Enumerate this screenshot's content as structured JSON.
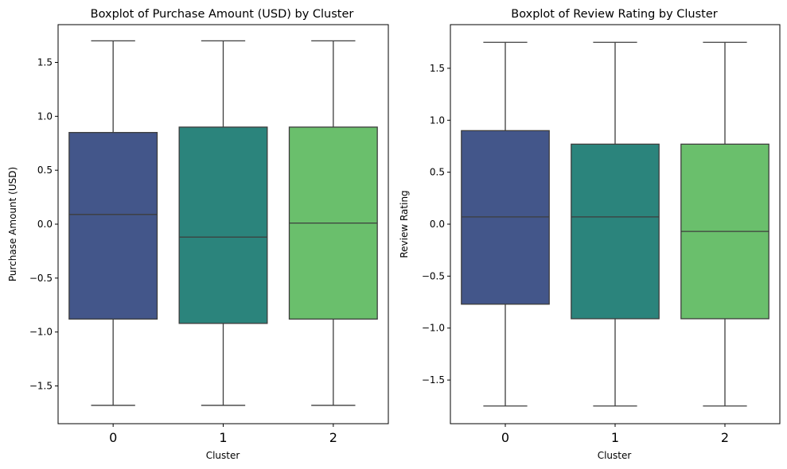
{
  "colors": {
    "cluster_0": "#43568a",
    "cluster_1": "#2b847c",
    "cluster_2": "#6abf6c",
    "line": "#3d3d3d"
  },
  "chart_data": [
    {
      "type": "box",
      "title": "Boxplot of Purchase Amount (USD) by Cluster",
      "xlabel": "Cluster",
      "ylabel": "Purchase Amount (USD)",
      "categories": [
        "0",
        "1",
        "2"
      ],
      "ylim": [
        -1.85,
        1.85
      ],
      "yticks": [
        -1.5,
        -1.0,
        -0.5,
        0.0,
        0.5,
        1.0,
        1.5
      ],
      "ytick_labels": [
        "−1.5",
        "−1.0",
        "−0.5",
        "0.0",
        "0.5",
        "1.0",
        "1.5"
      ],
      "boxes": [
        {
          "category": "0",
          "min": -1.68,
          "q1": -0.88,
          "median": 0.09,
          "q3": 0.85,
          "max": 1.7
        },
        {
          "category": "1",
          "min": -1.68,
          "q1": -0.92,
          "median": -0.12,
          "q3": 0.9,
          "max": 1.7
        },
        {
          "category": "2",
          "min": -1.68,
          "q1": -0.88,
          "median": 0.01,
          "q3": 0.9,
          "max": 1.7
        }
      ],
      "grid": false
    },
    {
      "type": "box",
      "title": "Boxplot of Review Rating by Cluster",
      "xlabel": "Cluster",
      "ylabel": "Review Rating",
      "categories": [
        "0",
        "1",
        "2"
      ],
      "ylim": [
        -1.92,
        1.92
      ],
      "yticks": [
        -1.5,
        -1.0,
        -0.5,
        0.0,
        0.5,
        1.0,
        1.5
      ],
      "ytick_labels": [
        "−1.5",
        "−1.0",
        "−0.5",
        "0.0",
        "0.5",
        "1.0",
        "1.5"
      ],
      "boxes": [
        {
          "category": "0",
          "min": -1.75,
          "q1": -0.77,
          "median": 0.07,
          "q3": 0.9,
          "max": 1.75
        },
        {
          "category": "1",
          "min": -1.75,
          "q1": -0.91,
          "median": 0.07,
          "q3": 0.77,
          "max": 1.75
        },
        {
          "category": "2",
          "min": -1.75,
          "q1": -0.91,
          "median": -0.07,
          "q3": 0.77,
          "max": 1.75
        }
      ],
      "grid": false
    }
  ]
}
